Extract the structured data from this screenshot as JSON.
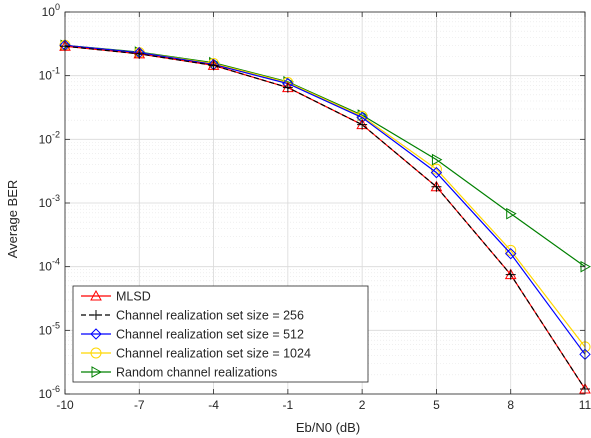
{
  "chart_data": {
    "type": "line",
    "title": "",
    "xlabel": "Eb/N0 (dB)",
    "ylabel": "Average BER",
    "x": [
      -10,
      -7,
      -4,
      -1,
      2,
      5,
      8,
      11
    ],
    "x_tick_labels": [
      "-10",
      "-7",
      "-4",
      "-1",
      "2",
      "5",
      "8",
      "11"
    ],
    "xlim": [
      -10,
      11
    ],
    "ylim": [
      1e-06,
      1
    ],
    "yscale": "log",
    "y_tick_exponents": [
      0,
      -1,
      -2,
      -3,
      -4,
      -5,
      -6
    ],
    "grid": true,
    "minor_grid": true,
    "legend_location": "bottom-left",
    "series": [
      {
        "name": "MLSD",
        "color": "#ff0000",
        "marker": "triangle-up",
        "dash": "solid",
        "values": [
          0.29,
          0.22,
          0.145,
          0.065,
          0.017,
          0.0018,
          7.5e-05,
          1.2e-06
        ]
      },
      {
        "name": "Channel realization set size = 256",
        "color": "#000000",
        "marker": "plus",
        "dash": "dashed",
        "values": [
          0.29,
          0.22,
          0.145,
          0.065,
          0.017,
          0.0018,
          7.5e-05,
          1.2e-06
        ]
      },
      {
        "name": "Channel realization set size = 512",
        "color": "#0000ff",
        "marker": "diamond",
        "dash": "solid",
        "values": [
          0.3,
          0.23,
          0.15,
          0.075,
          0.022,
          0.003,
          0.00016,
          4.2e-06
        ]
      },
      {
        "name": "Channel realization set size = 1024",
        "color": "#ffd700",
        "marker": "circle",
        "dash": "solid",
        "values": [
          0.3,
          0.23,
          0.155,
          0.078,
          0.023,
          0.0034,
          0.00018,
          5.5e-06
        ]
      },
      {
        "name": "Random channel realizations",
        "color": "#008000",
        "marker": "triangle-right",
        "dash": "solid",
        "values": [
          0.3,
          0.235,
          0.16,
          0.08,
          0.024,
          0.0048,
          0.00068,
          0.0001
        ]
      }
    ]
  }
}
